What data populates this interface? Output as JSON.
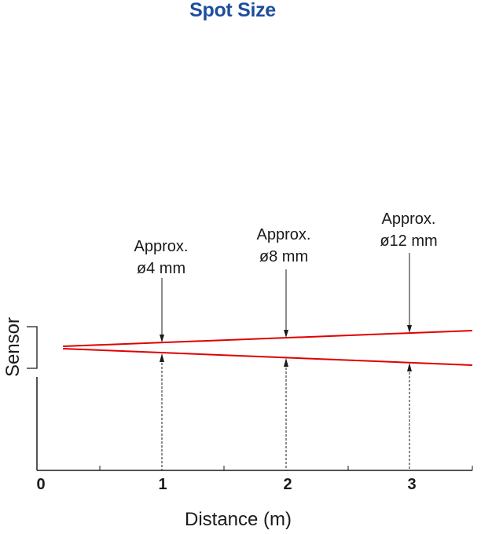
{
  "title": "Spot Size",
  "colors": {
    "title": "#1f4e9d",
    "beam": "#e00000",
    "ink": "#1a1a1a"
  },
  "sensor_label": "Sensor",
  "xlabel": "Distance (m)",
  "x_ticks": [
    "0",
    "1",
    "2",
    "3"
  ],
  "spots": [
    {
      "distance": 1,
      "line1": "Approx.",
      "line2": "ø4 mm"
    },
    {
      "distance": 2,
      "line1": "Approx.",
      "line2": "ø8 mm"
    },
    {
      "distance": 3,
      "line1": "Approx.",
      "line2": "ø12 mm"
    }
  ]
}
